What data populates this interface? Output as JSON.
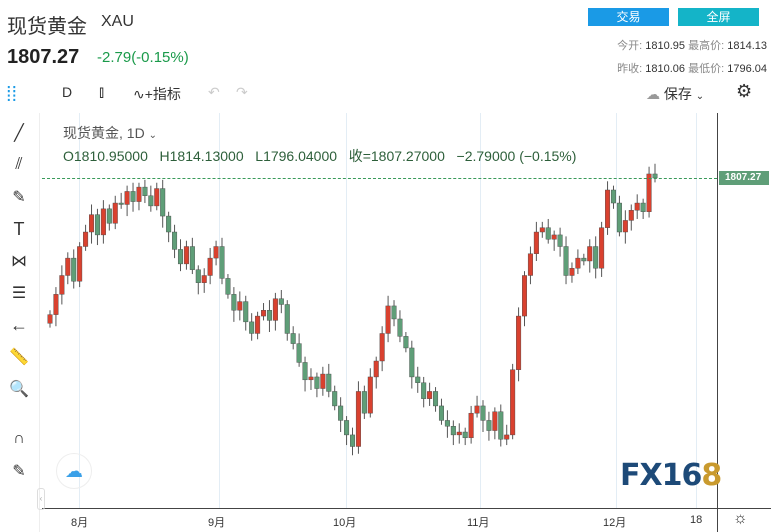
{
  "header": {
    "title": "现货黄金",
    "symbol": "XAU",
    "price": "1807.27",
    "change": "-2.79(-0.15%)",
    "trade_button": "交易",
    "fullscreen_button": "全屏",
    "stats": [
      {
        "label": "今开:",
        "value": "1810.95"
      },
      {
        "label": "最高价:",
        "value": "1814.13"
      },
      {
        "label": "昨收:",
        "value": "1810.06"
      },
      {
        "label": "最低价:",
        "value": "1796.04"
      }
    ]
  },
  "toolbar": {
    "interval": "D",
    "indicators": "指标",
    "save": "保存"
  },
  "legend": {
    "title": "现货黄金, 1D",
    "open": "O1810.95000",
    "high": "H1814.13000",
    "low": "L1796.04000",
    "close": "收=1807.27000",
    "change": "−2.79000 (−0.15%)"
  },
  "price_axis": {
    "last_price_label": "1807.27"
  },
  "x_axis": {
    "labels": [
      "8月",
      "9月",
      "10月",
      "11月",
      "12月",
      "18"
    ]
  },
  "colors": {
    "up": "#d9412f",
    "down": "#5f9e78",
    "accent": "#1a9ae6",
    "fullscreen": "#14b4c8"
  },
  "chart_data": {
    "type": "candlestick",
    "interval": "1D",
    "last": 1807.27,
    "closes": [
      1713,
      1727,
      1740,
      1752,
      1736,
      1760,
      1770,
      1782,
      1768,
      1786,
      1776,
      1790,
      1789,
      1798,
      1791,
      1801,
      1795,
      1788,
      1800,
      1781,
      1770,
      1758,
      1748,
      1760,
      1744,
      1735,
      1740,
      1752,
      1760,
      1738,
      1727,
      1716,
      1722,
      1708,
      1700,
      1712,
      1716,
      1709,
      1724,
      1720,
      1700,
      1693,
      1680,
      1668,
      1670,
      1662,
      1672,
      1660,
      1650,
      1640,
      1630,
      1622,
      1660,
      1645,
      1670,
      1681,
      1700,
      1719,
      1710,
      1698,
      1690,
      1670,
      1666,
      1655,
      1660,
      1650,
      1640,
      1636,
      1630,
      1632,
      1628,
      1645,
      1650,
      1640,
      1633,
      1646,
      1627,
      1630,
      1675,
      1712,
      1740,
      1755,
      1770,
      1773,
      1765,
      1768,
      1760,
      1740,
      1745,
      1752,
      1750,
      1760,
      1745,
      1773,
      1799,
      1790,
      1770,
      1778,
      1785,
      1790,
      1784,
      1810.06,
      1807.27
    ]
  }
}
